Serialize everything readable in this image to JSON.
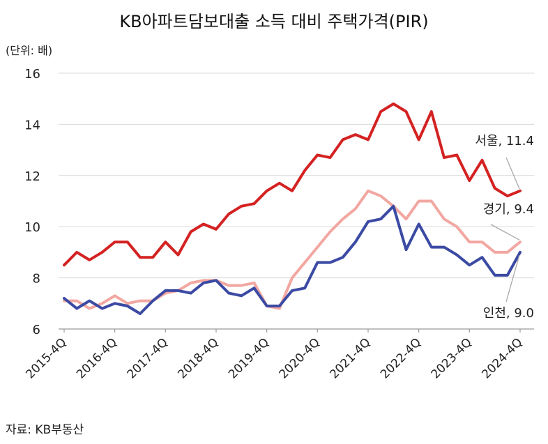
{
  "chart_data": {
    "type": "line",
    "title": "KB아파트담보대출 소득 대비 주택가격(PIR)",
    "unit_label": "(단위: 배)",
    "source": "자료: KB부동산",
    "ylim": [
      6,
      16
    ],
    "yticks": [
      6,
      8,
      10,
      12,
      14,
      16
    ],
    "grid": true,
    "x_count": 37,
    "xticks": [
      {
        "index": 0,
        "label": "2015-4Q"
      },
      {
        "index": 4,
        "label": "2016-4Q"
      },
      {
        "index": 8,
        "label": "2017-4Q"
      },
      {
        "index": 12,
        "label": "2018-4Q"
      },
      {
        "index": 16,
        "label": "2019-4Q"
      },
      {
        "index": 20,
        "label": "2020-4Q"
      },
      {
        "index": 24,
        "label": "2021-4Q"
      },
      {
        "index": 28,
        "label": "2022-4Q"
      },
      {
        "index": 32,
        "label": "2023-4Q"
      },
      {
        "index": 36,
        "label": "2024-4Q"
      }
    ],
    "series": [
      {
        "name": "서울",
        "end_label": "서울, 11.4",
        "color": "#d42222",
        "values": [
          8.5,
          9.0,
          8.7,
          9.0,
          9.4,
          9.4,
          8.8,
          8.8,
          9.4,
          8.9,
          9.8,
          10.1,
          9.9,
          10.5,
          10.8,
          10.9,
          11.4,
          11.7,
          11.4,
          12.2,
          12.8,
          12.7,
          13.4,
          13.6,
          13.4,
          14.5,
          14.8,
          14.5,
          13.4,
          14.5,
          12.7,
          12.8,
          11.8,
          12.6,
          11.5,
          11.2,
          11.4
        ]
      },
      {
        "name": "경기",
        "end_label": "경기, 9.4",
        "color": "#f2a7a1",
        "values": [
          7.1,
          7.1,
          6.8,
          7.0,
          7.3,
          7.0,
          7.1,
          7.1,
          7.4,
          7.5,
          7.8,
          7.9,
          7.9,
          7.7,
          7.7,
          7.8,
          6.9,
          6.8,
          8.0,
          8.6,
          9.2,
          9.8,
          10.3,
          10.7,
          11.4,
          11.2,
          10.8,
          10.3,
          11.0,
          11.0,
          10.3,
          10.0,
          9.4,
          9.4,
          9.0,
          9.0,
          9.4
        ]
      },
      {
        "name": "인천",
        "end_label": "인천, 9.0",
        "color": "#3b4aa3",
        "values": [
          7.2,
          6.8,
          7.1,
          6.8,
          7.0,
          6.9,
          6.6,
          7.1,
          7.5,
          7.5,
          7.4,
          7.8,
          7.9,
          7.4,
          7.3,
          7.6,
          6.9,
          6.9,
          7.5,
          7.6,
          8.6,
          8.6,
          8.8,
          9.4,
          10.2,
          10.3,
          10.8,
          9.1,
          10.1,
          9.2,
          9.2,
          8.9,
          8.5,
          8.8,
          8.1,
          8.1,
          9.0
        ]
      }
    ]
  }
}
